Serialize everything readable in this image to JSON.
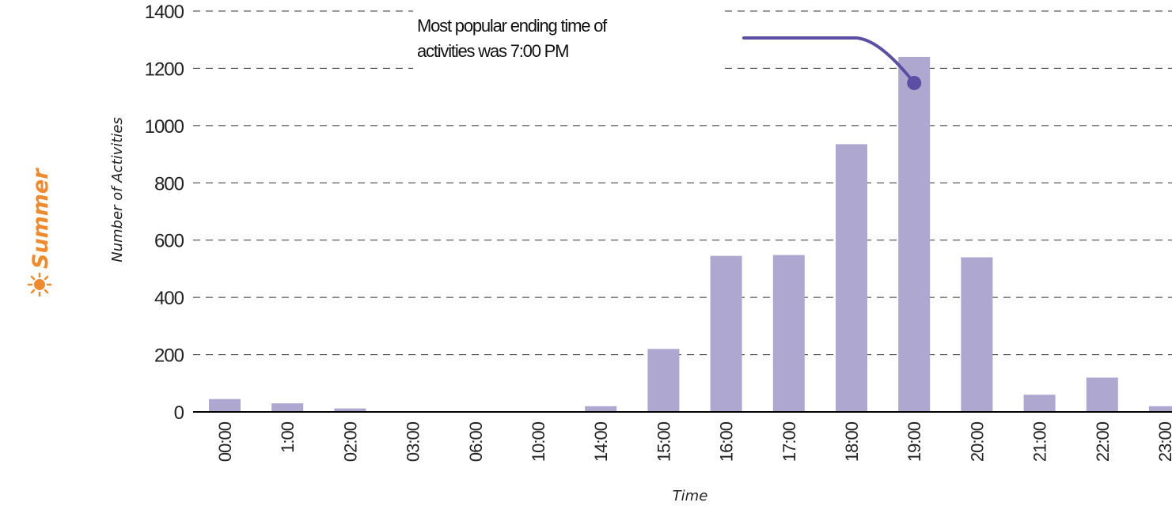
{
  "season": {
    "label": "Summer",
    "icon": "sun-icon",
    "color": "#f08a2e"
  },
  "chart_data": {
    "type": "bar",
    "xlabel": "Time",
    "ylabel": "Number of Activities",
    "categories": [
      "00:00",
      "1:00",
      "02:00",
      "03:00",
      "06:00",
      "10:00",
      "14:00",
      "15:00",
      "16:00",
      "17:00",
      "18:00",
      "19:00",
      "20:00",
      "21:00",
      "22:00",
      "23:00"
    ],
    "values": [
      45,
      30,
      12,
      2,
      1,
      1,
      20,
      220,
      545,
      548,
      935,
      1240,
      540,
      60,
      120,
      20
    ],
    "ylim": [
      0,
      1400
    ],
    "yticks": [
      "0",
      "200",
      "400",
      "600",
      "800",
      "1000",
      "1200",
      "1400"
    ],
    "grid": "dashed horizontal",
    "bar_color": "#aea8d0",
    "annotation": {
      "text_line1": "Most popular ending time of",
      "text_line2": "activities was 7:00 PM",
      "target_category": "19:00",
      "color": "#5b4ea3"
    }
  }
}
